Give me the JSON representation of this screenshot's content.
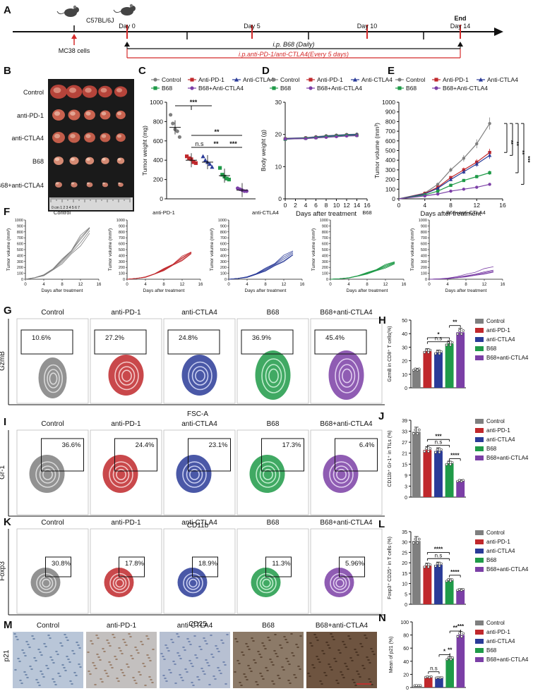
{
  "panels": {
    "A": "A",
    "B": "B",
    "C": "C",
    "D": "D",
    "E": "E",
    "F": "F",
    "G": "G",
    "H": "H",
    "I": "I",
    "J": "J",
    "K": "K",
    "L": "L",
    "M": "M",
    "N": "N"
  },
  "timeline": {
    "strain": "C57BL/6J",
    "cells": "MC38 cells",
    "days": [
      "Day 0",
      "Day 5",
      "Day 10",
      "Day 14"
    ],
    "end": "End",
    "b68": "i.p. B68 (Daily)",
    "combo": "i.p.anti-PD-1/anti-CTLA4(Every 5 days)"
  },
  "groups": [
    "Control",
    "anti-PD-1",
    "anti-CTLA4",
    "B68",
    "B68+anti-CTLA4"
  ],
  "legend_cap": [
    "Control",
    "Anti-PD-1",
    "Anti-CTLA4",
    "B68",
    "B68+Anti-CTLA4"
  ],
  "colors": {
    "control": "#7f7f7f",
    "pd1": "#c0282c",
    "ctla4": "#2a3b98",
    "b68": "#1f9a48",
    "combo": "#7b3fa6"
  },
  "photo": {
    "ruler": "0 cm  1   2   3   4   5   6   7"
  },
  "chart_data": [
    {
      "id": "C",
      "type": "scatter",
      "title": "",
      "xlabel": "",
      "ylabel": "Tumor weight (mg)",
      "ylim": [
        0,
        1000
      ],
      "yticks": [
        "0",
        "200",
        "400",
        "600",
        "800",
        "1000"
      ],
      "series": [
        {
          "name": "Control",
          "values": [
            870,
            780,
            720,
            700,
            640
          ],
          "mean": 740
        },
        {
          "name": "Anti-PD-1",
          "values": [
            440,
            420,
            410,
            380,
            370
          ],
          "mean": 400
        },
        {
          "name": "Anti-CTLA4",
          "values": [
            440,
            400,
            380,
            360,
            330
          ],
          "mean": 380
        },
        {
          "name": "B68",
          "values": [
            320,
            250,
            230,
            210,
            200
          ],
          "mean": 240
        },
        {
          "name": "B68+Anti-CTLA4",
          "values": [
            110,
            100,
            90,
            80,
            80
          ],
          "mean": 90
        }
      ],
      "annotations": [
        "***",
        "n.s",
        "**",
        "**",
        "***"
      ]
    },
    {
      "id": "D",
      "type": "line",
      "xlabel": "Days after treatment",
      "ylabel": "Body weight (g)",
      "ylim": [
        0,
        30
      ],
      "xticks": [
        "0",
        "2",
        "4",
        "6",
        "8",
        "10",
        "12",
        "14",
        "16"
      ],
      "yticks": [
        "0",
        "10",
        "20",
        "30"
      ],
      "x": [
        0,
        4,
        6,
        8,
        10,
        12,
        14
      ],
      "series": [
        {
          "name": "Control",
          "values": [
            18.8,
            19.0,
            19.3,
            19.6,
            19.8,
            20.0,
            20.1
          ]
        },
        {
          "name": "Anti-PD-1",
          "values": [
            18.6,
            18.9,
            19.1,
            19.4,
            19.6,
            19.8,
            19.8
          ]
        },
        {
          "name": "Anti-CTLA4",
          "values": [
            18.7,
            18.9,
            19.2,
            19.5,
            19.7,
            19.9,
            20.0
          ]
        },
        {
          "name": "B68",
          "values": [
            18.5,
            18.8,
            19.0,
            19.3,
            19.5,
            19.7,
            19.7
          ]
        },
        {
          "name": "B68+Anti-CTLA4",
          "values": [
            18.6,
            18.7,
            18.9,
            19.1,
            19.3,
            19.5,
            19.6
          ]
        }
      ]
    },
    {
      "id": "E",
      "type": "line",
      "xlabel": "Days after treatment",
      "ylabel": "Tumor volume (mm³)",
      "ylim": [
        0,
        1000
      ],
      "xticks": [
        "0",
        "4",
        "8",
        "12",
        "16"
      ],
      "yticks": [
        "0",
        "100",
        "200",
        "300",
        "400",
        "500",
        "600",
        "700",
        "800",
        "900",
        "1000"
      ],
      "x": [
        4,
        6,
        8,
        10,
        12,
        14
      ],
      "series": [
        {
          "name": "Control",
          "values": [
            60,
            150,
            300,
            420,
            570,
            780
          ]
        },
        {
          "name": "Anti-PD-1",
          "values": [
            55,
            120,
            220,
            300,
            380,
            480
          ]
        },
        {
          "name": "Anti-CTLA4",
          "values": [
            50,
            110,
            200,
            280,
            360,
            450
          ]
        },
        {
          "name": "B68",
          "values": [
            40,
            80,
            140,
            190,
            230,
            270
          ]
        },
        {
          "name": "B68+Anti-CTLA4",
          "values": [
            30,
            50,
            80,
            100,
            120,
            150
          ]
        }
      ],
      "annotations": [
        "**",
        "**",
        "**",
        "***"
      ]
    },
    {
      "id": "F",
      "type": "line",
      "xlabel": "Days after treatment",
      "ylabel": "Tumor volume (mm³)",
      "ylim": [
        0,
        1000
      ],
      "xticks": [
        "0",
        "4",
        "8",
        "12",
        "16"
      ],
      "yticks": [
        "0",
        "100",
        "200",
        "300",
        "400",
        "500",
        "600",
        "700",
        "800",
        "900",
        "1000"
      ],
      "panels": [
        {
          "name": "Control",
          "finals": [
            950,
            900,
            860,
            790,
            720
          ],
          "colorKey": "control"
        },
        {
          "name": "anti-PD-1",
          "finals": [
            500,
            470,
            450,
            420,
            400
          ],
          "colorKey": "pd1"
        },
        {
          "name": "anti-CTLA4",
          "finals": [
            520,
            480,
            440,
            400,
            380
          ],
          "colorKey": "ctla4"
        },
        {
          "name": "B68",
          "finals": [
            320,
            300,
            280,
            260,
            240
          ],
          "colorKey": "b68"
        },
        {
          "name": "B68+anti-CTLA4",
          "finals": [
            230,
            160,
            140,
            120,
            110
          ],
          "colorKey": "combo"
        }
      ]
    },
    {
      "id": "H",
      "type": "bar",
      "ylabel": "GzmB in CD8⁺ T cells(%)",
      "ylim": [
        0,
        50
      ],
      "yticks": [
        "0",
        "10",
        "20",
        "30",
        "40",
        "50"
      ],
      "categories": [
        "Control",
        "anti-PD-1",
        "anti-CTLA4",
        "B68",
        "B68+anti-CTLA4"
      ],
      "values": [
        13.5,
        27,
        26,
        32.5,
        41
      ],
      "annotations": [
        "n.s",
        "*",
        "**"
      ]
    },
    {
      "id": "J",
      "type": "bar",
      "ylabel": "CD11b⁺ Gr-1⁺ in TILs (%)",
      "ylim": [
        0,
        40
      ],
      "yticks": [
        "0",
        "3",
        "9",
        "15",
        "21",
        "27",
        "33",
        "39"
      ],
      "categories": [
        "Control",
        "anti-PD-1",
        "anti-CTLA4",
        "B68",
        "B68+anti-CTLA4"
      ],
      "values": [
        34,
        24.5,
        24,
        17.5,
        8.5
      ],
      "annotations": [
        "n.s",
        "***",
        "****"
      ]
    },
    {
      "id": "L",
      "type": "bar",
      "ylabel": "Foxp3⁺ CD25⁺ in T cells (%)",
      "ylim": [
        0,
        35
      ],
      "yticks": [
        "0",
        "5",
        "10",
        "15",
        "20",
        "25",
        "30",
        "35"
      ],
      "categories": [
        "Control",
        "anti-PD-1",
        "anti-CTLA4",
        "B68",
        "B68+anti-CTLA4"
      ],
      "values": [
        30.5,
        18.5,
        19,
        11.5,
        7
      ],
      "annotations": [
        "n.s",
        "****",
        "****"
      ]
    },
    {
      "id": "N",
      "type": "bar",
      "ylabel": "Mean of p21 (%)",
      "ylim": [
        0,
        100
      ],
      "yticks": [
        "0",
        "20",
        "40",
        "60",
        "80",
        "100"
      ],
      "categories": [
        "Control",
        "anti-PD-1",
        "anti-CTLA4",
        "B68",
        "B68+anti-CTLA4"
      ],
      "values": [
        3,
        16,
        15,
        44,
        80
      ],
      "annotations": [
        "n.s",
        "*",
        "**",
        "**",
        "***"
      ]
    }
  ],
  "flow": {
    "G": {
      "y": "GzmB",
      "x": "FSC-A",
      "values": [
        "10.6%",
        "27.2%",
        "24.8%",
        "36.9%",
        "45.4%"
      ]
    },
    "I": {
      "y": "Gr-1",
      "x": "CD11b",
      "values": [
        "36.6%",
        "24.4%",
        "23.1%",
        "17.3%",
        "6.4%"
      ]
    },
    "K": {
      "y": "Foxp3",
      "x": "CD25",
      "values": [
        "30.8%",
        "17.8%",
        "18.9%",
        "11.3%",
        "5.96%"
      ]
    }
  },
  "ihc": {
    "y": "p21"
  }
}
